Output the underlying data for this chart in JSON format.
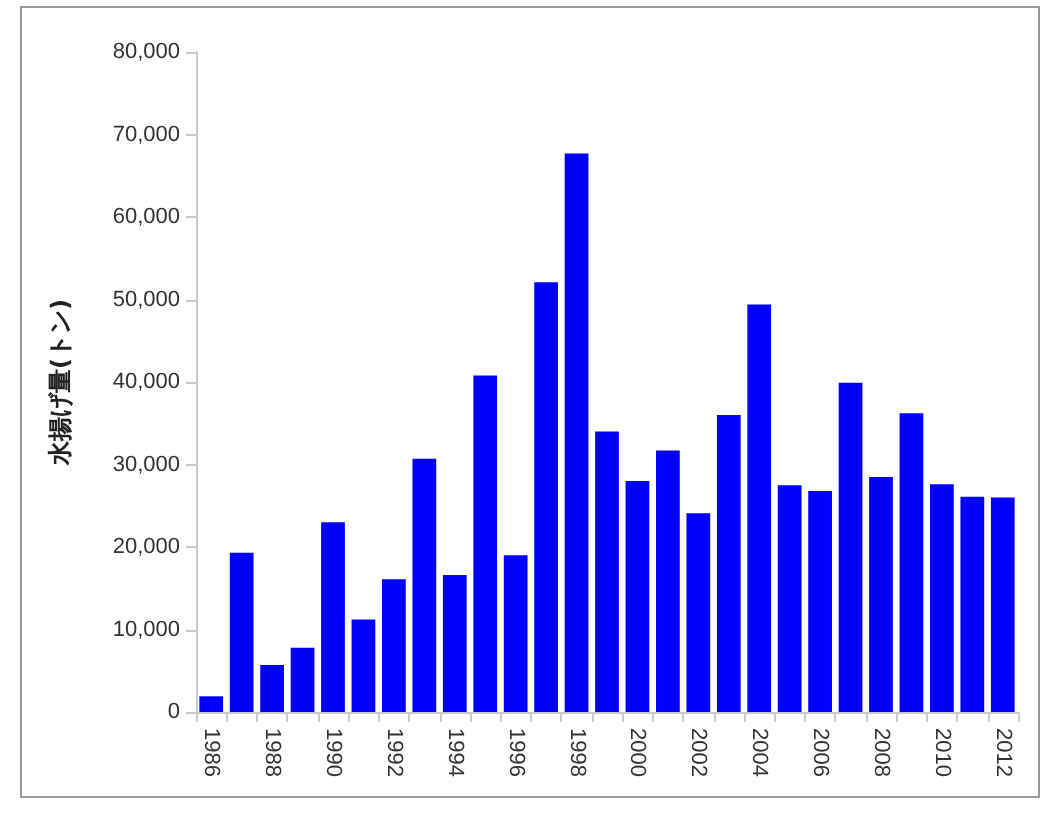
{
  "chart_data": {
    "type": "bar",
    "ylabel": "水揚げ量(トン)",
    "categories": [
      "1986",
      null,
      "1988",
      null,
      "1990",
      null,
      "1992",
      null,
      "1994",
      null,
      "1996",
      null,
      "1998",
      null,
      "2000",
      null,
      "2002",
      null,
      "2004",
      null,
      "2006",
      null,
      "2008",
      null,
      "2010",
      null,
      "2012"
    ],
    "values": [
      1900,
      19300,
      5700,
      7800,
      23000,
      11200,
      16100,
      30700,
      16600,
      40800,
      19000,
      52100,
      67700,
      34000,
      28000,
      31700,
      24100,
      36000,
      49400,
      27500,
      26800,
      39900,
      28500,
      36200,
      27600,
      26100,
      26000
    ],
    "color": "#0000ff",
    "ylim": [
      0,
      80000
    ],
    "yticks": [
      0,
      {
        "value": 10000,
        "label": "10,000"
      },
      {
        "value": 20000,
        "label": "20,000"
      },
      {
        "value": 30000,
        "label": "30,000"
      },
      {
        "value": 40000,
        "label": "40,000"
      },
      {
        "value": 50000,
        "label": "50,000"
      },
      {
        "value": 60000,
        "label": "60,000"
      },
      {
        "value": 70000,
        "label": "70,000"
      },
      {
        "value": 80000,
        "label": "80,000"
      }
    ],
    "grid": false
  }
}
